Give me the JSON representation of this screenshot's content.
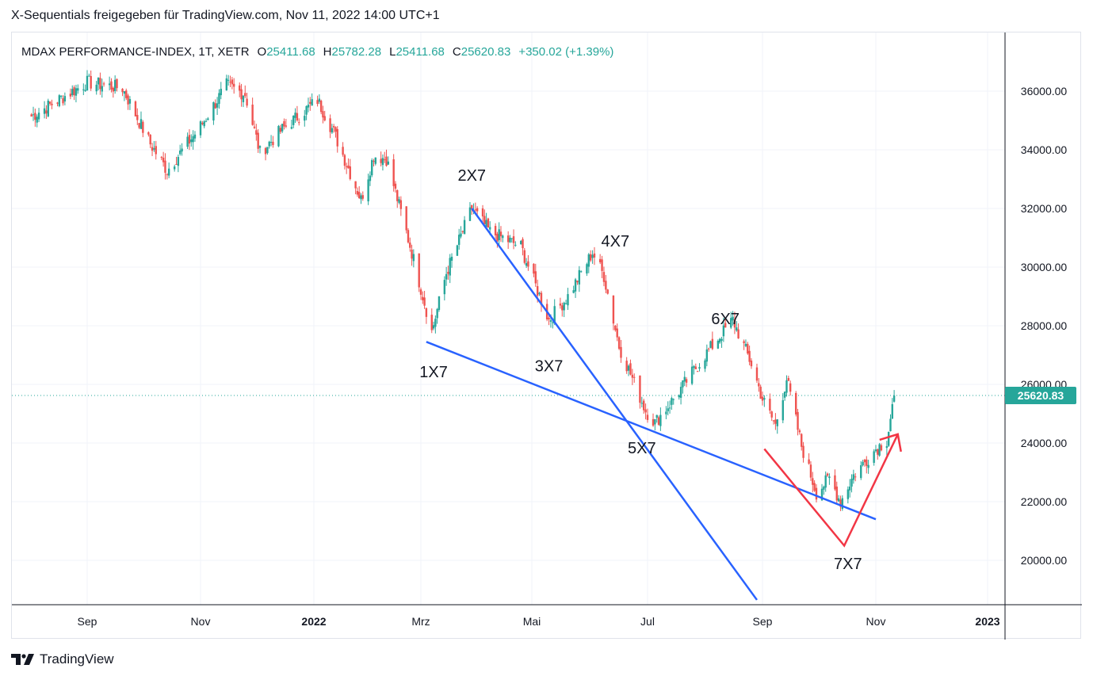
{
  "header": {
    "title": "X-Sequentials freigegeben für TradingView.com, Nov 11, 2022 14:00 UTC+1"
  },
  "footer": {
    "brand": "TradingView"
  },
  "chart_data": {
    "type": "candlestick",
    "symbol_line": {
      "name": "MDAX PERFORMANCE-INDEX, 1T, XETR",
      "open_label": "O",
      "open": "25411.68",
      "high_label": "H",
      "high": "25782.28",
      "low_label": "L",
      "low": "25411.68",
      "close_label": "C",
      "close": "25620.83",
      "change": "+350.02 (+1.39%)"
    },
    "last_price": "25620.83",
    "y_ticks": [
      "36000.00",
      "34000.00",
      "32000.00",
      "30000.00",
      "28000.00",
      "26000.00",
      "24000.00",
      "22000.00",
      "20000.00"
    ],
    "x_ticks": [
      "Sep",
      "Nov",
      "2022",
      "Mrz",
      "Mai",
      "Jul",
      "Sep",
      "Nov",
      "2023"
    ],
    "x_bold": [
      "2022",
      "2023"
    ],
    "ylim": [
      18500,
      37600
    ],
    "price_path": [
      {
        "date": "2021-08-01",
        "value": 35100
      },
      {
        "date": "2021-09-01",
        "value": 36300
      },
      {
        "date": "2021-09-20",
        "value": 36100
      },
      {
        "date": "2021-10-05",
        "value": 34200
      },
      {
        "date": "2021-10-14",
        "value": 33300
      },
      {
        "date": "2021-11-01",
        "value": 34800
      },
      {
        "date": "2021-11-15",
        "value": 36200
      },
      {
        "date": "2021-11-25",
        "value": 35900
      },
      {
        "date": "2021-12-03",
        "value": 33900
      },
      {
        "date": "2021-12-15",
        "value": 34700
      },
      {
        "date": "2022-01-03",
        "value": 35700
      },
      {
        "date": "2022-01-12",
        "value": 34600
      },
      {
        "date": "2022-01-27",
        "value": 32300
      },
      {
        "date": "2022-02-03",
        "value": 33800
      },
      {
        "date": "2022-02-10",
        "value": 33700
      },
      {
        "date": "2022-02-24",
        "value": 30500
      },
      {
        "date": "2022-03-07",
        "value": 27800
      },
      {
        "date": "2022-03-15",
        "value": 29800
      },
      {
        "date": "2022-03-29",
        "value": 32000
      },
      {
        "date": "2022-04-08",
        "value": 31200
      },
      {
        "date": "2022-04-25",
        "value": 30700
      },
      {
        "date": "2022-05-10",
        "value": 28200
      },
      {
        "date": "2022-05-20",
        "value": 29000
      },
      {
        "date": "2022-06-02",
        "value": 30500
      },
      {
        "date": "2022-06-08",
        "value": 29700
      },
      {
        "date": "2022-06-16",
        "value": 27300
      },
      {
        "date": "2022-06-30",
        "value": 25100
      },
      {
        "date": "2022-07-05",
        "value": 24700
      },
      {
        "date": "2022-07-15",
        "value": 25500
      },
      {
        "date": "2022-08-01",
        "value": 27000
      },
      {
        "date": "2022-08-16",
        "value": 28200
      },
      {
        "date": "2022-08-26",
        "value": 26700
      },
      {
        "date": "2022-09-01",
        "value": 25500
      },
      {
        "date": "2022-09-08",
        "value": 24600
      },
      {
        "date": "2022-09-14",
        "value": 26200
      },
      {
        "date": "2022-09-22",
        "value": 23900
      },
      {
        "date": "2022-09-30",
        "value": 22300
      },
      {
        "date": "2022-10-07",
        "value": 22800
      },
      {
        "date": "2022-10-13",
        "value": 22000
      },
      {
        "date": "2022-10-20",
        "value": 22900
      },
      {
        "date": "2022-11-01",
        "value": 23800
      },
      {
        "date": "2022-11-07",
        "value": 24100
      },
      {
        "date": "2022-11-11",
        "value": 25620
      }
    ],
    "annotations": [
      {
        "text": "1X7",
        "date": "2022-03-08",
        "value": 26250
      },
      {
        "text": "2X7",
        "date": "2022-03-29",
        "value": 32950
      },
      {
        "text": "3X7",
        "date": "2022-05-10",
        "value": 26450
      },
      {
        "text": "4X7",
        "date": "2022-06-14",
        "value": 30700
      },
      {
        "text": "5X7",
        "date": "2022-06-28",
        "value": 23650
      },
      {
        "text": "6X7",
        "date": "2022-08-12",
        "value": 28050
      },
      {
        "text": "7X7",
        "date": "2022-10-17",
        "value": 19700
      }
    ],
    "trendlines": [
      {
        "color": "#2962ff",
        "points": [
          {
            "date": "2022-03-04",
            "value": 27450
          },
          {
            "date": "2022-11-01",
            "value": 21400
          }
        ]
      },
      {
        "color": "#2962ff",
        "points": [
          {
            "date": "2022-03-29",
            "value": 32000
          },
          {
            "date": "2022-08-29",
            "value": 18650
          }
        ]
      }
    ],
    "arrow": {
      "color": "#f23645",
      "points": [
        {
          "date": "2022-09-02",
          "value": 23800
        },
        {
          "date": "2022-10-15",
          "value": 20500
        },
        {
          "date": "2022-11-13",
          "value": 24300
        }
      ]
    },
    "colors": {
      "up": "#26a69a",
      "down": "#ef5350",
      "price_tag": "#26a69a",
      "trendline": "#2962ff",
      "arrow": "#f23645"
    }
  }
}
